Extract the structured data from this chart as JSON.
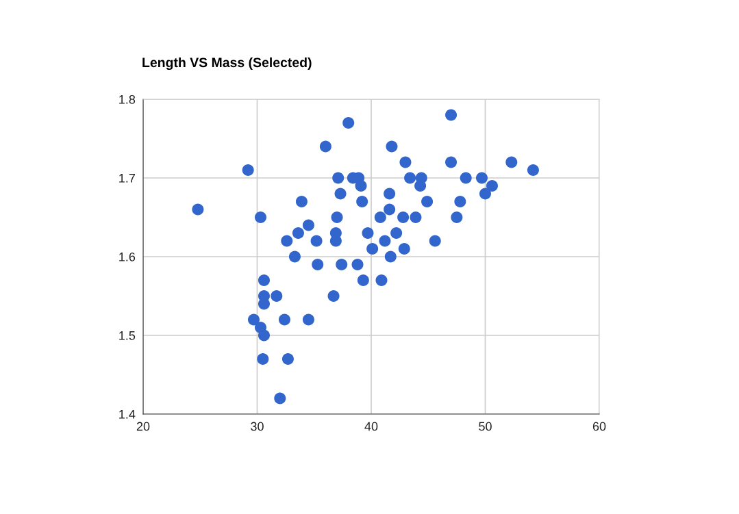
{
  "chart_data": {
    "type": "scatter",
    "title": "Length VS Mass (Selected)",
    "x": [
      24.8,
      29.2,
      30.3,
      29.7,
      30.3,
      30.6,
      30.5,
      30.6,
      30.6,
      30.6,
      31.7,
      32.4,
      32.6,
      32.7,
      32.0,
      33.3,
      33.6,
      33.9,
      34.5,
      34.5,
      35.2,
      35.3,
      36.0,
      36.7,
      36.9,
      36.9,
      37.0,
      37.1,
      37.3,
      37.4,
      38.0,
      38.4,
      38.9,
      39.1,
      39.2,
      38.8,
      39.3,
      39.7,
      40.1,
      40.8,
      40.9,
      41.2,
      41.6,
      41.6,
      41.7,
      41.8,
      42.2,
      42.8,
      43.0,
      42.9,
      43.4,
      43.9,
      44.4,
      44.3,
      44.9,
      45.6,
      47.0,
      47.0,
      47.5,
      47.8,
      48.3,
      49.7,
      50.0,
      50.6,
      52.3,
      54.2
    ],
    "series": [
      {
        "color": "#3366cc",
        "values": [
          1.66,
          1.71,
          1.65,
          1.52,
          1.51,
          1.5,
          1.47,
          1.57,
          1.55,
          1.54,
          1.55,
          1.52,
          1.62,
          1.47,
          1.42,
          1.6,
          1.63,
          1.67,
          1.64,
          1.52,
          1.62,
          1.59,
          1.74,
          1.55,
          1.63,
          1.62,
          1.65,
          1.7,
          1.68,
          1.59,
          1.77,
          1.7,
          1.7,
          1.69,
          1.67,
          1.59,
          1.57,
          1.63,
          1.61,
          1.65,
          1.57,
          1.62,
          1.66,
          1.68,
          1.6,
          1.74,
          1.63,
          1.65,
          1.72,
          1.61,
          1.7,
          1.65,
          1.7,
          1.69,
          1.67,
          1.62,
          1.78,
          1.72,
          1.65,
          1.67,
          1.7,
          1.7,
          1.68,
          1.69,
          1.72,
          1.71
        ]
      }
    ],
    "xlim": [
      20,
      60
    ],
    "xticks": [
      20,
      30,
      40,
      50,
      60
    ],
    "ylim": [
      1.4,
      1.8
    ],
    "yticks": [
      1.4,
      1.5,
      1.6,
      1.7,
      1.8
    ],
    "grid": true,
    "marker": "circle"
  }
}
